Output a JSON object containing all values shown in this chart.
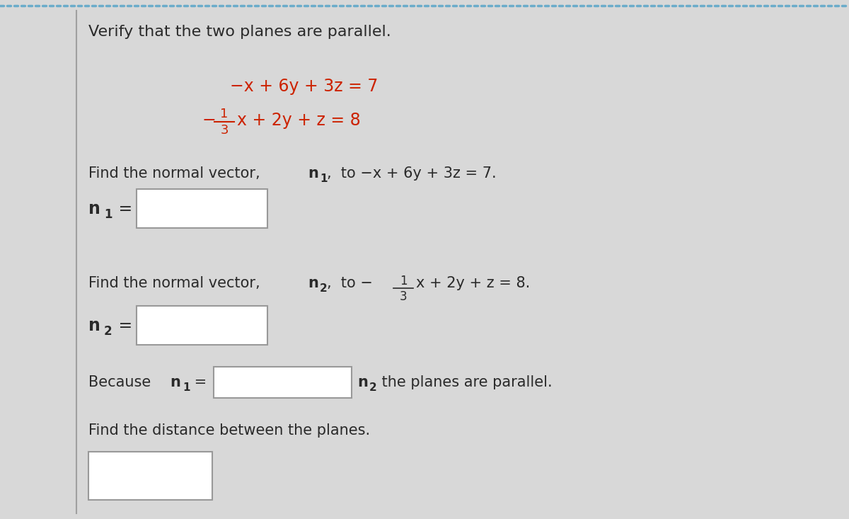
{
  "bg_color": "#d8d8d8",
  "content_bg": "#e8e6e6",
  "text_color": "#2a2a2a",
  "red_color": "#cc2200",
  "box_stroke": "#999999",
  "title": "Verify that the two planes are parallel.",
  "dot_color": "#6aacca",
  "left_line_color": "#a0a0a0",
  "eq1": "−x + 6y + 3z = 7",
  "eq2_suffix": "x + 2y + z = 8"
}
